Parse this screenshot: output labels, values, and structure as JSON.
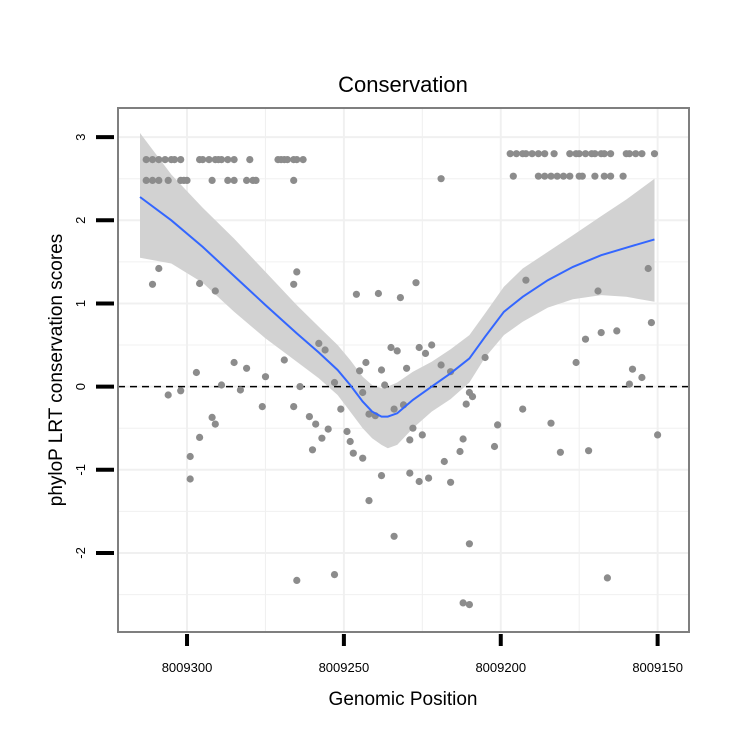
{
  "chart_data": {
    "type": "scatter",
    "title": "Conservation",
    "xlabel": "Genomic Position",
    "ylabel": "phyloP LRT conservation scores",
    "xlim": [
      8009322,
      8009140
    ],
    "ylim": [
      -2.95,
      3.35
    ],
    "x_reversed": true,
    "x_ticks": [
      8009300,
      8009250,
      8009200,
      8009150
    ],
    "x_tick_labels": [
      "8009300",
      "8009250",
      "8009200",
      "8009150"
    ],
    "y_ticks": [
      -2,
      -1,
      0,
      1,
      2,
      3
    ],
    "y_tick_labels": [
      "-2",
      "-1",
      "0",
      "1",
      "2",
      "3"
    ],
    "grid": true,
    "reference_line": {
      "y": 0,
      "style": "dashed",
      "color": "#000000"
    },
    "colors": {
      "points": "#8c8c8c",
      "smooth_line": "#3366ff",
      "confidence_band": "#d2d2d2",
      "panel_border": "#7f7f7f",
      "grid": "#f0f0f0"
    },
    "series": [
      {
        "name": "conservation scores",
        "type": "scatter",
        "points": [
          [
            8009313,
            2.73
          ],
          [
            8009311,
            2.73
          ],
          [
            8009309,
            2.73
          ],
          [
            8009307,
            2.73
          ],
          [
            8009305,
            2.73
          ],
          [
            8009304,
            2.73
          ],
          [
            8009302,
            2.73
          ],
          [
            8009296,
            2.73
          ],
          [
            8009295,
            2.73
          ],
          [
            8009293,
            2.73
          ],
          [
            8009291,
            2.73
          ],
          [
            8009290,
            2.73
          ],
          [
            8009289,
            2.73
          ],
          [
            8009287,
            2.73
          ],
          [
            8009285,
            2.73
          ],
          [
            8009280,
            2.73
          ],
          [
            8009271,
            2.73
          ],
          [
            8009270,
            2.73
          ],
          [
            8009269,
            2.73
          ],
          [
            8009268,
            2.73
          ],
          [
            8009266,
            2.73
          ],
          [
            8009265,
            2.73
          ],
          [
            8009263,
            2.73
          ],
          [
            8009313,
            2.48
          ],
          [
            8009311,
            2.48
          ],
          [
            8009309,
            2.48
          ],
          [
            8009306,
            2.48
          ],
          [
            8009302,
            2.48
          ],
          [
            8009301,
            2.48
          ],
          [
            8009300,
            2.48
          ],
          [
            8009292,
            2.48
          ],
          [
            8009287,
            2.48
          ],
          [
            8009285,
            2.48
          ],
          [
            8009281,
            2.48
          ],
          [
            8009279,
            2.48
          ],
          [
            8009278,
            2.48
          ],
          [
            8009266,
            2.48
          ],
          [
            8009197,
            2.8
          ],
          [
            8009195,
            2.8
          ],
          [
            8009193,
            2.8
          ],
          [
            8009192,
            2.8
          ],
          [
            8009190,
            2.8
          ],
          [
            8009188,
            2.8
          ],
          [
            8009186,
            2.8
          ],
          [
            8009183,
            2.8
          ],
          [
            8009178,
            2.8
          ],
          [
            8009176,
            2.8
          ],
          [
            8009175,
            2.8
          ],
          [
            8009173,
            2.8
          ],
          [
            8009171,
            2.8
          ],
          [
            8009170,
            2.8
          ],
          [
            8009168,
            2.8
          ],
          [
            8009167,
            2.8
          ],
          [
            8009165,
            2.8
          ],
          [
            8009160,
            2.8
          ],
          [
            8009159,
            2.8
          ],
          [
            8009157,
            2.8
          ],
          [
            8009155,
            2.8
          ],
          [
            8009151,
            2.8
          ],
          [
            8009196,
            2.53
          ],
          [
            8009188,
            2.53
          ],
          [
            8009186,
            2.53
          ],
          [
            8009184,
            2.53
          ],
          [
            8009182,
            2.53
          ],
          [
            8009180,
            2.53
          ],
          [
            8009178,
            2.53
          ],
          [
            8009175,
            2.53
          ],
          [
            8009174,
            2.53
          ],
          [
            8009170,
            2.53
          ],
          [
            8009167,
            2.53
          ],
          [
            8009165,
            2.53
          ],
          [
            8009161,
            2.53
          ],
          [
            8009219,
            2.5
          ],
          [
            8009192,
            1.28
          ],
          [
            8009169,
            1.15
          ],
          [
            8009153,
            1.42
          ],
          [
            8009309,
            1.42
          ],
          [
            8009311,
            1.23
          ],
          [
            8009296,
            1.24
          ],
          [
            8009291,
            1.15
          ],
          [
            8009266,
            1.23
          ],
          [
            8009265,
            1.38
          ],
          [
            8009246,
            1.11
          ],
          [
            8009239,
            1.12
          ],
          [
            8009232,
            1.07
          ],
          [
            8009227,
            1.25
          ],
          [
            8009258,
            0.52
          ],
          [
            8009256,
            0.44
          ],
          [
            8009243,
            0.29
          ],
          [
            8009237,
            0.02
          ],
          [
            8009235,
            0.47
          ],
          [
            8009233,
            0.43
          ],
          [
            8009230,
            0.22
          ],
          [
            8009226,
            0.47
          ],
          [
            8009224,
            0.4
          ],
          [
            8009222,
            0.5
          ],
          [
            8009219,
            0.26
          ],
          [
            8009216,
            0.18
          ],
          [
            8009210,
            -0.07
          ],
          [
            8009205,
            0.35
          ],
          [
            8009176,
            0.29
          ],
          [
            8009173,
            0.57
          ],
          [
            8009168,
            0.65
          ],
          [
            8009163,
            0.67
          ],
          [
            8009158,
            0.21
          ],
          [
            8009159,
            0.03
          ],
          [
            8009155,
            0.11
          ],
          [
            8009152,
            0.77
          ],
          [
            8009306,
            -0.1
          ],
          [
            8009302,
            -0.05
          ],
          [
            8009297,
            0.17
          ],
          [
            8009292,
            -0.37
          ],
          [
            8009289,
            0.02
          ],
          [
            8009285,
            0.29
          ],
          [
            8009283,
            -0.04
          ],
          [
            8009281,
            0.22
          ],
          [
            8009276,
            -0.24
          ],
          [
            8009275,
            0.12
          ],
          [
            8009269,
            0.32
          ],
          [
            8009266,
            -0.24
          ],
          [
            8009264,
            0.0
          ],
          [
            8009261,
            -0.36
          ],
          [
            8009259,
            -0.45
          ],
          [
            8009257,
            -0.62
          ],
          [
            8009255,
            -0.51
          ],
          [
            8009253,
            0.05
          ],
          [
            8009251,
            -0.27
          ],
          [
            8009249,
            -0.54
          ],
          [
            8009248,
            -0.66
          ],
          [
            8009245,
            0.19
          ],
          [
            8009244,
            -0.07
          ],
          [
            8009242,
            -0.33
          ],
          [
            8009240,
            -0.35
          ],
          [
            8009238,
            0.2
          ],
          [
            8009234,
            -0.27
          ],
          [
            8009231,
            -0.22
          ],
          [
            8009229,
            -0.64
          ],
          [
            8009228,
            -0.5
          ],
          [
            8009225,
            -0.58
          ],
          [
            8009223,
            -1.1
          ],
          [
            8009218,
            -0.9
          ],
          [
            8009213,
            -0.78
          ],
          [
            8009212,
            -0.63
          ],
          [
            8009211,
            -0.21
          ],
          [
            8009209,
            -0.12
          ],
          [
            8009202,
            -0.72
          ],
          [
            8009201,
            -0.46
          ],
          [
            8009193,
            -0.27
          ],
          [
            8009184,
            -0.44
          ],
          [
            8009181,
            -0.79
          ],
          [
            8009172,
            -0.77
          ],
          [
            8009150,
            -0.58
          ],
          [
            8009291,
            -0.45
          ],
          [
            8009299,
            -0.84
          ],
          [
            8009296,
            -0.61
          ],
          [
            8009299,
            -1.11
          ],
          [
            8009260,
            -0.76
          ],
          [
            8009247,
            -0.8
          ],
          [
            8009244,
            -0.86
          ],
          [
            8009242,
            -1.37
          ],
          [
            8009238,
            -1.07
          ],
          [
            8009229,
            -1.04
          ],
          [
            8009226,
            -1.14
          ],
          [
            8009216,
            -1.15
          ],
          [
            8009210,
            -1.89
          ],
          [
            8009234,
            -1.8
          ],
          [
            8009253,
            -2.26
          ],
          [
            8009166,
            -2.3
          ],
          [
            8009265,
            -2.33
          ],
          [
            8009212,
            -2.6
          ],
          [
            8009210,
            -2.62
          ]
        ]
      },
      {
        "name": "loess smooth",
        "type": "line",
        "points": [
          [
            8009315,
            2.28
          ],
          [
            8009305,
            2.0
          ],
          [
            8009295,
            1.68
          ],
          [
            8009285,
            1.33
          ],
          [
            8009275,
            0.98
          ],
          [
            8009265,
            0.64
          ],
          [
            8009258,
            0.41
          ],
          [
            8009252,
            0.2
          ],
          [
            8009248,
            0.02
          ],
          [
            8009244,
            -0.18
          ],
          [
            8009241,
            -0.3
          ],
          [
            8009238,
            -0.36
          ],
          [
            8009236,
            -0.36
          ],
          [
            8009233,
            -0.32
          ],
          [
            8009228,
            -0.16
          ],
          [
            8009222,
            0.0
          ],
          [
            8009216,
            0.16
          ],
          [
            8009210,
            0.34
          ],
          [
            8009205,
            0.6
          ],
          [
            8009199,
            0.9
          ],
          [
            8009193,
            1.08
          ],
          [
            8009185,
            1.28
          ],
          [
            8009177,
            1.44
          ],
          [
            8009168,
            1.58
          ],
          [
            8009160,
            1.67
          ],
          [
            8009151,
            1.77
          ]
        ]
      },
      {
        "name": "confidence band",
        "type": "area",
        "x": [
          8009315,
          8009305,
          8009295,
          8009285,
          8009275,
          8009265,
          8009258,
          8009252,
          8009248,
          8009244,
          8009241,
          8009238,
          8009236,
          8009233,
          8009228,
          8009222,
          8009216,
          8009210,
          8009205,
          8009199,
          8009193,
          8009185,
          8009177,
          8009168,
          8009160,
          8009151
        ],
        "upper": [
          3.05,
          2.55,
          2.15,
          1.78,
          1.38,
          0.98,
          0.72,
          0.5,
          0.32,
          0.12,
          0.02,
          -0.02,
          0.0,
          0.05,
          0.18,
          0.3,
          0.45,
          0.62,
          0.88,
          1.2,
          1.42,
          1.62,
          1.82,
          2.05,
          2.25,
          2.5
        ],
        "lower": [
          1.55,
          1.48,
          1.25,
          0.9,
          0.58,
          0.3,
          0.1,
          -0.1,
          -0.3,
          -0.5,
          -0.62,
          -0.7,
          -0.74,
          -0.7,
          -0.5,
          -0.3,
          -0.15,
          0.05,
          0.35,
          0.62,
          0.78,
          0.95,
          1.05,
          1.1,
          1.08,
          1.02
        ]
      }
    ]
  }
}
